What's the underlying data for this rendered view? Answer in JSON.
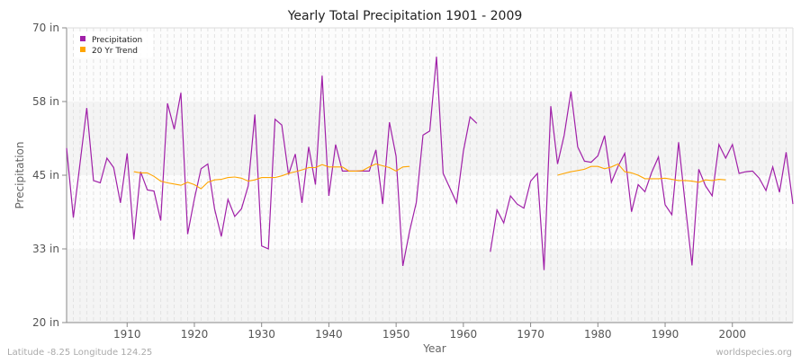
{
  "chart_data": {
    "type": "line",
    "title": "Yearly Total Precipitation 1901 - 2009",
    "xlabel": "Year",
    "ylabel": "Precipitation",
    "xlim": [
      1901,
      2009
    ],
    "ylim": [
      20,
      70
    ],
    "x_ticks": [
      1910,
      1920,
      1930,
      1940,
      1950,
      1960,
      1970,
      1980,
      1990,
      2000
    ],
    "y_ticks": [
      {
        "value": 20,
        "label": "20 in"
      },
      {
        "value": 32.5,
        "label": "33 in"
      },
      {
        "value": 45,
        "label": "45 in"
      },
      {
        "value": 57.5,
        "label": "58 in"
      },
      {
        "value": 70,
        "label": "70 in"
      }
    ],
    "grid": true,
    "legend_position": "top-left",
    "series": [
      {
        "name": "Precipitation",
        "color": "#a020a8",
        "start_year": 1901,
        "values": [
          49.6,
          37.8,
          47,
          56.4,
          44.1,
          43.7,
          47.9,
          46.3,
          40.3,
          48.7,
          34.1,
          45.6,
          42.5,
          42.3,
          37.3,
          57.2,
          52.8,
          59.0,
          35.0,
          41,
          46.1,
          46.9,
          39.3,
          34.6,
          40.9,
          38.0,
          39.3,
          43.2,
          55.3,
          33.0,
          32.5,
          54.5,
          53.5,
          45.1,
          48.6,
          40.3,
          49.8,
          43.4,
          61.9,
          41.5,
          50.2,
          45.7,
          45.7,
          45.7,
          45.7,
          45.7,
          49.3,
          40.1,
          54.0,
          48.2,
          29.6,
          35.5,
          40.4,
          51.8,
          52.5,
          65.1,
          45.3,
          42.8,
          40.3,
          49.1,
          54.9,
          53.8,
          null,
          32.0,
          39.1,
          36.9,
          41.5,
          40.1,
          39.4,
          44.0,
          45.3,
          28.9,
          56.7,
          46.9,
          51.8,
          59.2,
          49.8,
          47.4,
          47.2,
          48.3,
          51.7,
          43.8,
          46.5,
          48.7,
          38.8,
          43.4,
          42.2,
          45.5,
          48.1,
          40.0,
          38.3,
          50.6,
          40,
          29.7,
          46.0,
          43.2,
          41.5,
          50.2,
          47.9,
          50.2,
          45.3,
          45.6,
          45.7,
          44.5,
          42.4,
          46.4,
          42.1,
          48.9,
          40.1
        ]
      },
      {
        "name": "20 Yr Trend",
        "color": "#ffa500",
        "segments": [
          {
            "start_year": 1911,
            "values": [
              45.6,
              45.4,
              45.4,
              44.8,
              44.0,
              43.7,
              43.5,
              43.3,
              43.8,
              43.4,
              42.7,
              43.8,
              44.2,
              44.3,
              44.6,
              44.7,
              44.5,
              44.0,
              44.2,
              44.6,
              44.6,
              44.6,
              44.9,
              45.3,
              45.6,
              45.9,
              46.3,
              46.3,
              46.8,
              46.4,
              46.4,
              46.4,
              45.7,
              45.7,
              45.8,
              46.4,
              46.9,
              46.6,
              46.3,
              45.7,
              46.4,
              46.5
            ]
          },
          {
            "start_year": 1974,
            "values": [
              45.0,
              45.3,
              45.6,
              45.8,
              46.0,
              46.5,
              46.5,
              46.1,
              46.4,
              46.9,
              45.6,
              45.4,
              45.0,
              44.4,
              44.4,
              44.4,
              44.5,
              44.3,
              44.1,
              44.1,
              44.0,
              43.8,
              44.2,
              44.1,
              44.3,
              44.2
            ]
          }
        ]
      }
    ]
  },
  "footer": {
    "location": "Latitude -8.25 Longitude 124.25",
    "watermark": "worldspecies.org"
  }
}
